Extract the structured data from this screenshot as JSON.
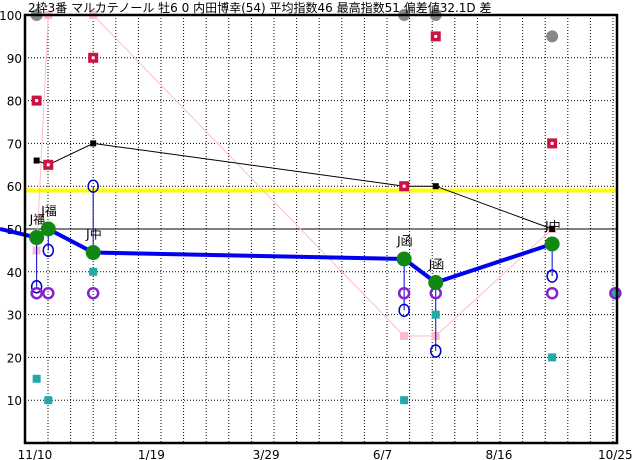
{
  "title": "2枠3番 マルカテノール 牡6 0 内田博幸(54) 平均指数46 最高指数51 偏差値32.1D 差",
  "chart_data": {
    "type": "line",
    "ylim": [
      0,
      100
    ],
    "yticks": [
      10,
      20,
      30,
      40,
      50,
      60,
      70,
      80,
      90,
      100
    ],
    "xlim": [
      "11/04",
      "10/26"
    ],
    "xticks": [
      "11/10",
      "1/19",
      "3/29",
      "6/7",
      "8/16",
      "10/25"
    ],
    "grid": true,
    "reference_lines": {
      "yellow": 59,
      "black": 50
    },
    "colors": {
      "index": "#0000ee",
      "index_marker": "#118811",
      "prev": "#000000",
      "yellow": "#ffff00",
      "red": "#cc1144",
      "gray": "#888888",
      "pink": "#ffbbcc",
      "blue_circle": "#0000cc",
      "purple": "#8822cc",
      "teal": "#22aaaa"
    },
    "index_series": {
      "lead_in": 50,
      "points": [
        {
          "date": "11/11",
          "value": 48,
          "label": "J福"
        },
        {
          "date": "11/18",
          "value": 50,
          "label": "J福"
        },
        {
          "date": "12/15",
          "value": 44.5,
          "label": "J中"
        },
        {
          "date": "06/20",
          "value": 43,
          "label": "J函"
        },
        {
          "date": "07/09",
          "value": 37.5,
          "label": "J函"
        },
        {
          "date": "09/17",
          "value": 46.5,
          "label": "J中"
        }
      ]
    },
    "black_series": [
      {
        "date": "11/11",
        "value": 66
      },
      {
        "date": "11/18",
        "value": 65
      },
      {
        "date": "12/15",
        "value": 70
      },
      {
        "date": "06/20",
        "value": 60
      },
      {
        "date": "07/09",
        "value": 60
      },
      {
        "date": "09/17",
        "value": 50
      }
    ],
    "pink_series": [
      {
        "date": "11/11",
        "value": 45
      },
      {
        "date": "11/18",
        "value": 100
      },
      {
        "date": "12/15",
        "value": 100
      },
      {
        "date": "06/20",
        "value": 25
      },
      {
        "date": "07/09",
        "value": 25
      },
      {
        "date": "09/17",
        "value": 50
      }
    ],
    "red_squares": [
      {
        "date": "11/11",
        "value": 80
      },
      {
        "date": "11/18",
        "value": 65
      },
      {
        "date": "12/15",
        "value": 90
      },
      {
        "date": "06/20",
        "value": 60
      },
      {
        "date": "07/09",
        "value": 95
      },
      {
        "date": "09/17",
        "value": 70
      }
    ],
    "gray_circles": [
      {
        "date": "11/11",
        "value": 100
      },
      {
        "date": "06/20",
        "value": 100
      },
      {
        "date": "07/09",
        "value": 100
      },
      {
        "date": "09/17",
        "value": 95
      }
    ],
    "blue_circles": [
      {
        "date": "11/11",
        "value": 36.5
      },
      {
        "date": "11/18",
        "value": 45
      },
      {
        "date": "12/15",
        "value": 60
      },
      {
        "date": "06/20",
        "value": 31
      },
      {
        "date": "07/09",
        "value": 21.5
      },
      {
        "date": "09/17",
        "value": 39
      }
    ],
    "purple_circles": [
      {
        "date": "11/11",
        "value": 35
      },
      {
        "date": "11/18",
        "value": 35
      },
      {
        "date": "12/15",
        "value": 35
      },
      {
        "date": "06/20",
        "value": 35
      },
      {
        "date": "07/09",
        "value": 35
      },
      {
        "date": "09/17",
        "value": 35
      },
      {
        "date": "10/25",
        "value": 35
      }
    ],
    "teal_squares": [
      {
        "date": "11/11",
        "value": 15
      },
      {
        "date": "11/18",
        "value": 10
      },
      {
        "date": "12/15",
        "value": 40
      },
      {
        "date": "06/20",
        "value": 10
      },
      {
        "date": "07/09",
        "value": 30
      },
      {
        "date": "09/17",
        "value": 20
      },
      {
        "date": "10/25",
        "value": 35
      }
    ]
  }
}
